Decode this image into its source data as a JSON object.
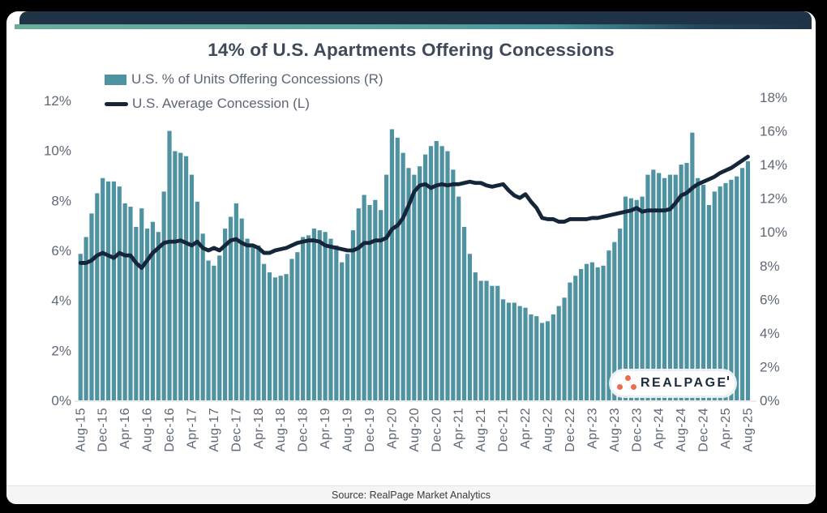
{
  "title": "14% of U.S. Apartments Offering Concessions",
  "legend": {
    "items": [
      {
        "label": "U.S. % of Units Offering Concessions (R)",
        "swatch": "bar",
        "color": "#4f93a2"
      },
      {
        "label": "U.S. Average Concession (L)",
        "swatch": "line",
        "color": "#15263a"
      }
    ]
  },
  "logo": {
    "text": "REALPAGE",
    "dot_color": "#e96d4f",
    "text_color": "#1c2a39"
  },
  "footer": {
    "source": "Source: RealPage Market Analytics"
  },
  "colors": {
    "page_background": "#000000",
    "card_background": "#ffffff",
    "header_bar": "#1f3346",
    "header_stripe_start": "#6dac9b",
    "header_stripe_end": "#1f3346",
    "bar_color": "#4f93a2",
    "line_color": "#15263a",
    "axis_text": "#5f6875",
    "title_text": "#3e4a5a"
  },
  "chart_data": {
    "type": "bar",
    "title": "14% of U.S. Apartments Offering Concessions",
    "grid": false,
    "legend_position": "top-left",
    "x_tick_interval": 4,
    "left_axis": {
      "ticks": [
        "0%",
        "2%",
        "4%",
        "6%",
        "8%",
        "10%",
        "12%"
      ],
      "range": [
        0,
        12
      ]
    },
    "right_axis": {
      "ticks": [
        "0%",
        "2%",
        "4%",
        "6%",
        "8%",
        "10%",
        "12%",
        "14%",
        "16%",
        "18%"
      ],
      "range": [
        0,
        18
      ]
    },
    "x": [
      "Aug-15",
      "Sep-15",
      "Oct-15",
      "Nov-15",
      "Dec-15",
      "Jan-16",
      "Feb-16",
      "Mar-16",
      "Apr-16",
      "May-16",
      "Jun-16",
      "Jul-16",
      "Aug-16",
      "Sep-16",
      "Oct-16",
      "Nov-16",
      "Dec-16",
      "Jan-17",
      "Feb-17",
      "Mar-17",
      "Apr-17",
      "May-17",
      "Jun-17",
      "Jul-17",
      "Aug-17",
      "Sep-17",
      "Oct-17",
      "Nov-17",
      "Dec-17",
      "Jan-18",
      "Feb-18",
      "Mar-18",
      "Apr-18",
      "May-18",
      "Jun-18",
      "Jul-18",
      "Aug-18",
      "Sep-18",
      "Oct-18",
      "Nov-18",
      "Dec-18",
      "Jan-19",
      "Feb-19",
      "Mar-19",
      "Apr-19",
      "May-19",
      "Jun-19",
      "Jul-19",
      "Aug-19",
      "Sep-19",
      "Oct-19",
      "Nov-19",
      "Dec-19",
      "Jan-20",
      "Feb-20",
      "Mar-20",
      "Apr-20",
      "May-20",
      "Jun-20",
      "Jul-20",
      "Aug-20",
      "Sep-20",
      "Oct-20",
      "Nov-20",
      "Dec-20",
      "Jan-21",
      "Feb-21",
      "Mar-21",
      "Apr-21",
      "May-21",
      "Jun-21",
      "Jul-21",
      "Aug-21",
      "Sep-21",
      "Oct-21",
      "Nov-21",
      "Dec-21",
      "Jan-22",
      "Feb-22",
      "Mar-22",
      "Apr-22",
      "May-22",
      "Jun-22",
      "Jul-22",
      "Aug-22",
      "Sep-22",
      "Oct-22",
      "Nov-22",
      "Dec-22",
      "Jan-23",
      "Feb-23",
      "Mar-23",
      "Apr-23",
      "May-23",
      "Jun-23",
      "Jul-23",
      "Aug-23",
      "Sep-23",
      "Oct-23",
      "Nov-23",
      "Dec-23",
      "Jan-24",
      "Feb-24",
      "Mar-24",
      "Apr-24",
      "May-24",
      "Jun-24",
      "Jul-24",
      "Aug-24",
      "Sep-24",
      "Oct-24",
      "Nov-24",
      "Dec-24",
      "Jan-25",
      "Feb-25",
      "Mar-25",
      "Apr-25",
      "May-25",
      "Jun-25",
      "Jul-25",
      "Aug-25"
    ],
    "series": [
      {
        "name": "U.S. % of Units Offering Concessions (R)",
        "type": "bar",
        "axis": "right",
        "color": "#4f93a2",
        "values": [
          8.7,
          9.7,
          11.1,
          12.3,
          13.2,
          13.0,
          13.0,
          12.7,
          11.7,
          11.5,
          10.3,
          11.4,
          10.2,
          10.6,
          10.0,
          12.4,
          16.0,
          14.8,
          14.7,
          14.5,
          13.4,
          11.8,
          9.9,
          8.3,
          8.0,
          8.6,
          10.2,
          10.9,
          11.7,
          10.8,
          9.6,
          9.2,
          9.2,
          8.1,
          7.6,
          7.3,
          7.4,
          7.5,
          8.4,
          8.8,
          9.7,
          9.8,
          10.2,
          10.1,
          10.0,
          9.6,
          9.2,
          8.2,
          8.7,
          10.1,
          11.4,
          12.2,
          11.6,
          11.9,
          11.3,
          13.4,
          16.1,
          15.6,
          14.7,
          13.8,
          13.4,
          13.9,
          14.6,
          15.1,
          15.4,
          15.1,
          14.8,
          13.7,
          12.1,
          10.3,
          8.7,
          7.6,
          7.1,
          7.1,
          6.8,
          6.8,
          6.0,
          5.8,
          5.8,
          5.6,
          5.5,
          5.1,
          5.0,
          4.6,
          4.7,
          5.1,
          5.6,
          6.1,
          7.0,
          7.4,
          7.8,
          8.1,
          8.2,
          7.9,
          8.0,
          8.9,
          9.4,
          10.2,
          12.1,
          12.0,
          11.9,
          12.1,
          13.4,
          13.7,
          13.5,
          13.2,
          13.4,
          13.4,
          14.0,
          14.1,
          15.9,
          13.2,
          12.8,
          11.6,
          12.4,
          12.7,
          12.9,
          13.1,
          13.3,
          13.8,
          14.2
        ]
      },
      {
        "name": "U.S. Average Concession (L)",
        "type": "line",
        "axis": "left",
        "color": "#15263a",
        "values": [
          5.5,
          5.5,
          5.6,
          5.8,
          5.9,
          5.8,
          5.7,
          5.9,
          5.8,
          5.8,
          5.5,
          5.3,
          5.6,
          5.9,
          6.1,
          6.3,
          6.35,
          6.35,
          6.4,
          6.3,
          6.2,
          6.35,
          6.1,
          6.0,
          6.1,
          6.0,
          6.2,
          6.4,
          6.45,
          6.3,
          6.2,
          6.2,
          6.1,
          5.9,
          5.9,
          6.0,
          6.05,
          6.1,
          6.2,
          6.3,
          6.35,
          6.4,
          6.4,
          6.35,
          6.2,
          6.15,
          6.1,
          6.05,
          6.0,
          6.0,
          6.1,
          6.3,
          6.3,
          6.4,
          6.4,
          6.5,
          6.85,
          7.0,
          7.3,
          7.8,
          8.35,
          8.6,
          8.65,
          8.5,
          8.6,
          8.65,
          8.6,
          8.65,
          8.65,
          8.7,
          8.75,
          8.7,
          8.7,
          8.6,
          8.55,
          8.6,
          8.65,
          8.4,
          8.2,
          8.1,
          8.25,
          7.95,
          7.7,
          7.3,
          7.25,
          7.25,
          7.15,
          7.15,
          7.25,
          7.25,
          7.25,
          7.25,
          7.3,
          7.3,
          7.35,
          7.4,
          7.45,
          7.5,
          7.55,
          7.6,
          7.7,
          7.55,
          7.6,
          7.6,
          7.6,
          7.6,
          7.65,
          7.9,
          8.2,
          8.3,
          8.5,
          8.65,
          8.75,
          8.85,
          8.95,
          9.1,
          9.2,
          9.3,
          9.45,
          9.6,
          9.75
        ]
      }
    ]
  }
}
